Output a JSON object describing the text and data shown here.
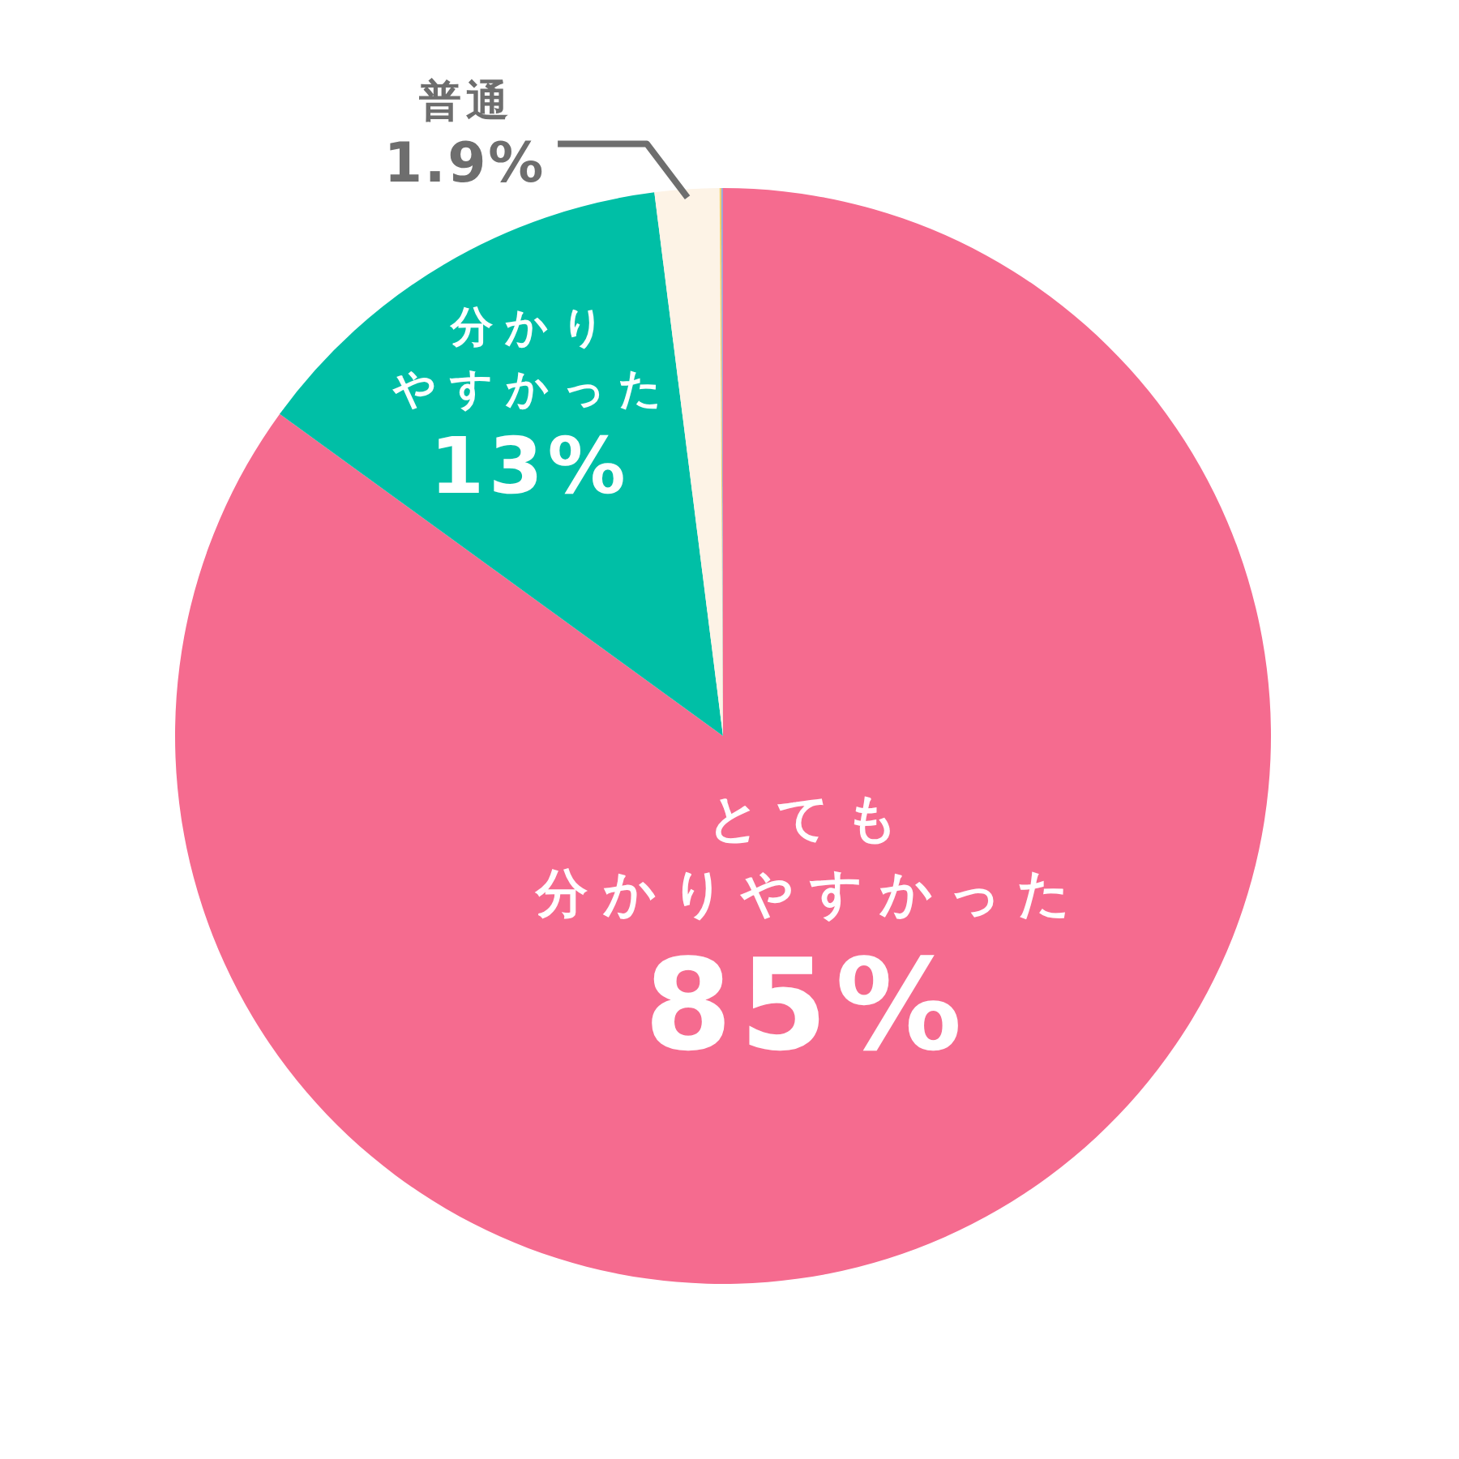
{
  "chart_data": {
    "type": "pie",
    "categories": [
      "とても分かりやすかった",
      "分かりやすかった",
      "普通",
      null,
      null
    ],
    "values": [
      85,
      13,
      1.9,
      0.05,
      0.05
    ],
    "colors": [
      "#f56b8f",
      "#00bfa6",
      "#fdf3e6",
      "#f3d36b",
      "#9fa7d6"
    ],
    "value_labels": [
      "85%",
      "13%",
      "1.9%",
      null,
      null
    ]
  }
}
